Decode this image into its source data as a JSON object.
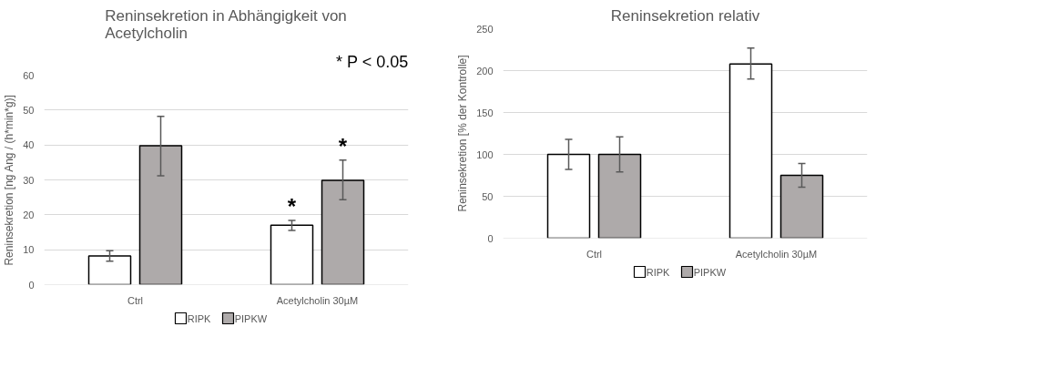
{
  "chart_data": [
    {
      "type": "bar",
      "title": "Reninsekretion in Abhängigkeit von Acetylcholin",
      "ylabel": "Reninsekretion [ng Ang / (h*min*g)]",
      "categories": [
        "Ctrl",
        "Acetylcholin 30µM"
      ],
      "series": [
        {
          "name": "RIPK",
          "color": "#ffffff",
          "values": [
            8.2,
            17
          ],
          "errors": [
            [
              6.7,
              9.7
            ],
            [
              15.5,
              18.4
            ]
          ],
          "value_labels": [
            null,
            "*"
          ]
        },
        {
          "name": "PIPKW",
          "color": "#aeaaaa",
          "values": [
            39.8,
            29.9
          ],
          "errors": [
            [
              31.2,
              48.2
            ],
            [
              24.3,
              35.7
            ]
          ],
          "value_labels": [
            null,
            "*"
          ]
        }
      ],
      "ylim": [
        0,
        60
      ],
      "yticks": [
        0,
        10,
        20,
        30,
        40,
        50,
        60
      ],
      "grid": "y",
      "legend": "bottom",
      "annotations": [
        "* P < 0.05"
      ]
    },
    {
      "type": "bar",
      "title": "Reninsekretion relativ",
      "ylabel": "Reninsekretion [% der Kontrolle]",
      "categories": [
        "Ctrl",
        "Acetylcholin 30µM"
      ],
      "series": [
        {
          "name": "RIPK",
          "color": "#ffffff",
          "values": [
            100,
            208
          ],
          "errors": [
            [
              82,
              118
            ],
            [
              190,
              227
            ]
          ]
        },
        {
          "name": "PIPKW",
          "color": "#aeaaaa",
          "values": [
            100,
            75
          ],
          "errors": [
            [
              79,
              121
            ],
            [
              61,
              89
            ]
          ]
        }
      ],
      "ylim": [
        0,
        250
      ],
      "yticks": [
        0,
        50,
        100,
        150,
        200,
        250
      ],
      "grid": "y",
      "legend": "bottom"
    }
  ]
}
